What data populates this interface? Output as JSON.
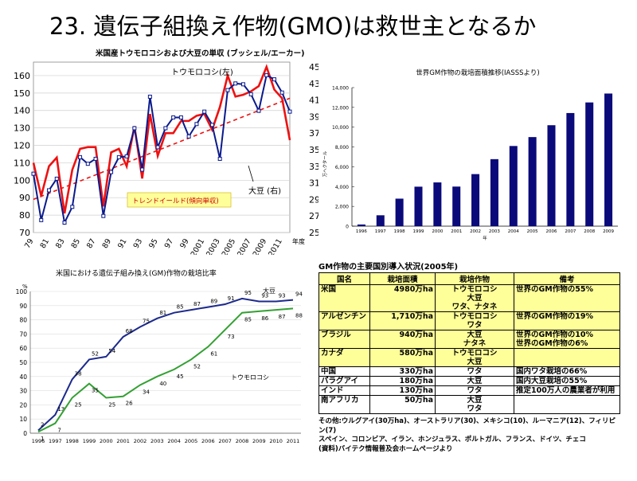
{
  "page": {
    "title": "23. 遺伝子組換え作物(GMO)は救世主となるか"
  },
  "chart_data": [
    {
      "type": "line",
      "title": "米国産トウモロコシおよび大豆の単収 (ブッシェル/エーカー)",
      "xlabel": "年度",
      "x": [
        1979,
        1980,
        1981,
        1982,
        1983,
        1984,
        1985,
        1986,
        1987,
        1988,
        1989,
        1990,
        1991,
        1992,
        1993,
        1994,
        1995,
        1996,
        1997,
        1998,
        1999,
        2000,
        2001,
        2002,
        2003,
        2004,
        2005,
        2006,
        2007,
        2008,
        2009,
        2010,
        2011,
        2012
      ],
      "x_tick_labels": [
        "79",
        "81",
        "83",
        "85",
        "87",
        "89",
        "91",
        "93",
        "95",
        "97",
        "99",
        "2001",
        "2003",
        "2005",
        "2007",
        "2009",
        "2011"
      ],
      "left_ticks": [
        "70",
        "80",
        "90",
        "100",
        "110",
        "120",
        "130",
        "140",
        "150",
        "160"
      ],
      "right_ticks": [
        "25",
        "27",
        "29",
        "31",
        "33",
        "35",
        "37",
        "39",
        "41",
        "43",
        "45"
      ],
      "ylim_left": [
        70,
        165
      ],
      "ylim_right": [
        25,
        45
      ],
      "series": [
        {
          "name": "トウモロコシ(左)",
          "axis": "left",
          "color": "#ee1111",
          "values": [
            110,
            91,
            108,
            113,
            81,
            106,
            118,
            119,
            119,
            85,
            116,
            118,
            108,
            131,
            101,
            138,
            114,
            127,
            127,
            134,
            134,
            137,
            138,
            129,
            142,
            160,
            148,
            149,
            151,
            154,
            165,
            152,
            147,
            123
          ]
        },
        {
          "name": "大豆 (右)",
          "axis": "right",
          "color": "#0a1a8c",
          "values": [
            32.1,
            26.5,
            30.1,
            31.5,
            26.2,
            28.1,
            34.1,
            33.3,
            33.9,
            27.0,
            32.3,
            34.1,
            34.2,
            37.6,
            32.6,
            41.4,
            35.3,
            37.6,
            38.9,
            38.9,
            36.6,
            38.1,
            39.6,
            38.0,
            33.9,
            42.2,
            43.0,
            42.9,
            41.7,
            39.7,
            44.0,
            43.5,
            41.9,
            39.6
          ]
        }
      ],
      "trend": {
        "label": "トレンドイールド(傾向単収)",
        "color": "#ee1111"
      },
      "annotations": [
        "トウモロコシ(左)",
        "大豆 (右)"
      ]
    },
    {
      "type": "bar",
      "title": "世界GM作物の栽培面積推移(IASSSより)",
      "xlabel": "年",
      "ylabel": "万ヘクタール",
      "categories": [
        "1996",
        "1997",
        "1998",
        "1999",
        "2000",
        "2001",
        "2002",
        "2003",
        "2004",
        "2005",
        "2006",
        "2007",
        "2008",
        "2009"
      ],
      "values": [
        170,
        1100,
        2780,
        3990,
        4420,
        4000,
        5260,
        6770,
        8100,
        9000,
        10200,
        11430,
        12500,
        13400
      ],
      "y_ticks": [
        "0",
        "2,000",
        "4,000",
        "6,000",
        "8,000",
        "10,000",
        "12,000",
        "14,000"
      ],
      "ylim": [
        0,
        14000
      ],
      "color": "#0a0a7a"
    },
    {
      "type": "line",
      "title": "米国における遺伝子組み換え(GM)作物の栽培比率",
      "ylabel": "%",
      "x": [
        "1996",
        "1997",
        "1998",
        "1999",
        "2000",
        "2001",
        "2002",
        "2003",
        "2004",
        "2005",
        "2006",
        "2007",
        "2008",
        "2009",
        "2010",
        "2011"
      ],
      "y_ticks": [
        "0",
        "10",
        "20",
        "30",
        "40",
        "50",
        "60",
        "70",
        "80",
        "90",
        "100"
      ],
      "ylim": [
        0,
        100
      ],
      "series": [
        {
          "name": "大豆",
          "color": "#1c2a8c",
          "values": [
            2,
            13,
            38,
            52,
            54,
            68,
            75,
            81,
            85,
            87,
            89,
            91,
            95,
            93,
            93,
            94
          ]
        },
        {
          "name": "トウモロコシ",
          "color": "#33a033",
          "values": [
            1,
            7,
            25,
            35,
            25,
            26,
            34,
            40,
            45,
            52,
            61,
            73,
            85,
            86,
            87,
            88
          ]
        }
      ]
    }
  ],
  "table": {
    "caption": "GM作物の主要国別導入状況(2005年)",
    "headers": [
      "国名",
      "栽培面積",
      "栽培作物",
      "備考"
    ],
    "rows": [
      {
        "country": "米国",
        "area": "4980万ha",
        "crops": [
          "トウモロコシ",
          "大豆",
          "ワタ、ナタネ"
        ],
        "note": [
          "世界のGM作物の55%"
        ],
        "highlight": true
      },
      {
        "country": "アルゼンチン",
        "area": "1,710万ha",
        "crops": [
          "トウモロコシ",
          "ワタ"
        ],
        "note": [
          "世界のGM作物の19%"
        ],
        "highlight": true
      },
      {
        "country": "ブラジル",
        "area": "940万ha",
        "crops": [
          "大豆",
          "ナタネ"
        ],
        "note": [
          "世界のGM作物の10%",
          "世界のGM作物の6%"
        ],
        "highlight": true
      },
      {
        "country": "カナダ",
        "area": "580万ha",
        "crops": [
          "トウモロコシ",
          "大豆"
        ],
        "note": [],
        "highlight": true
      },
      {
        "country": "中国",
        "area": "330万ha",
        "crops": [
          "ワタ"
        ],
        "note": [
          "国内ワタ栽培の66%"
        ],
        "highlight": false
      },
      {
        "country": "パラグアイ",
        "area": "180万ha",
        "crops": [
          "大豆"
        ],
        "note": [
          "国内大豆栽培の55%"
        ],
        "highlight": false
      },
      {
        "country": "インド",
        "area": "130万ha",
        "crops": [
          "ワタ"
        ],
        "note": [
          "推定100万人の農業者が利用"
        ],
        "highlight": false
      },
      {
        "country": "南アフリカ",
        "area": "50万ha",
        "crops": [
          "大豆",
          "ワタ"
        ],
        "note": [],
        "highlight": false
      }
    ],
    "others_note": "その他:ウルグアイ(30万ha)、オーストラリア(30)、メキシコ(10)、ルーマニア(12)、フィリピン(7)",
    "others_note2": "スペイン、コロンビア、イラン、ホンジュラス、ポルトガル、フランス、ドイツ、チェコ",
    "source_note": "(資料)バイテク情報普及会ホームページより"
  }
}
